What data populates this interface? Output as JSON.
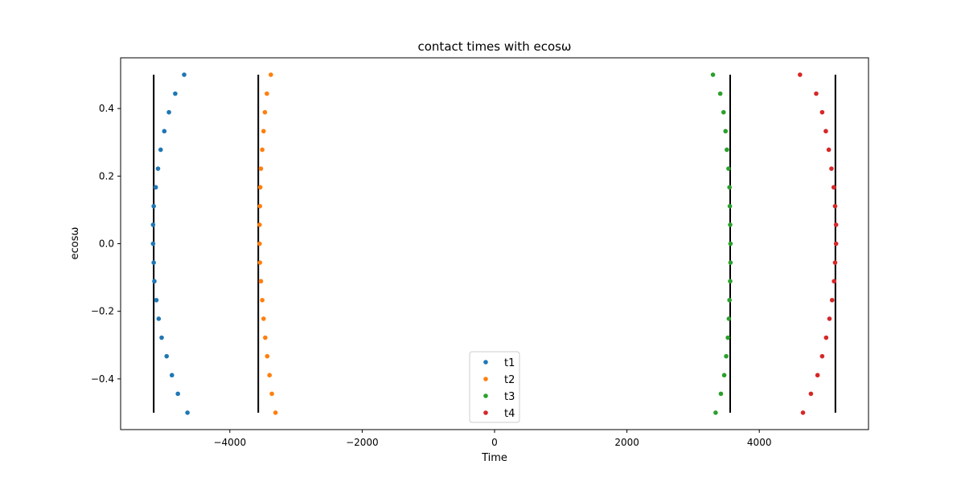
{
  "chart_data": {
    "type": "scatter",
    "title": "contact times with ecosω",
    "xlabel": "Time",
    "ylabel": "ecosω",
    "xlim": [
      -5650,
      5650
    ],
    "ylim": [
      -0.55,
      0.55
    ],
    "x_ticks": [
      -4000,
      -2000,
      0,
      2000,
      4000
    ],
    "x_tick_labels": [
      "−4000",
      "−2000",
      "0",
      "2000",
      "4000"
    ],
    "y_ticks": [
      -0.4,
      -0.2,
      0.0,
      0.2,
      0.4
    ],
    "y_tick_labels": [
      "−0.4",
      "−0.2",
      "0.0",
      "0.2",
      "0.4"
    ],
    "grid": false,
    "legend_position": "bottom-center",
    "y": [
      -0.5,
      -0.444,
      -0.389,
      -0.333,
      -0.278,
      -0.222,
      -0.167,
      -0.111,
      -0.056,
      0.0,
      0.056,
      0.111,
      0.167,
      0.222,
      0.278,
      0.333,
      0.389,
      0.444,
      0.5
    ],
    "series": [
      {
        "name": "t1",
        "color": "#1f77b4",
        "x": [
          -4640,
          -4785,
          -4875,
          -4955,
          -5030,
          -5075,
          -5110,
          -5140,
          -5150,
          -5160,
          -5160,
          -5150,
          -5120,
          -5085,
          -5045,
          -4990,
          -4920,
          -4825,
          -4690
        ]
      },
      {
        "name": "t2",
        "color": "#ff7f0e",
        "x": [
          -3310,
          -3365,
          -3400,
          -3435,
          -3465,
          -3490,
          -3510,
          -3530,
          -3545,
          -3550,
          -3550,
          -3545,
          -3540,
          -3530,
          -3510,
          -3490,
          -3470,
          -3440,
          -3380
        ]
      },
      {
        "name": "t3",
        "color": "#2ca02c",
        "x": [
          3340,
          3420,
          3470,
          3500,
          3525,
          3540,
          3550,
          3560,
          3565,
          3565,
          3560,
          3555,
          3550,
          3535,
          3510,
          3490,
          3460,
          3410,
          3300
        ]
      },
      {
        "name": "t4",
        "color": "#d62728",
        "x": [
          4660,
          4780,
          4880,
          4950,
          5010,
          5060,
          5100,
          5130,
          5145,
          5160,
          5160,
          5145,
          5125,
          5090,
          5050,
          5005,
          4950,
          4860,
          4615
        ]
      }
    ],
    "vlines": [
      {
        "x": -5150,
        "y0": -0.5,
        "y1": 0.5,
        "color": "#000000"
      },
      {
        "x": -3570,
        "y0": -0.5,
        "y1": 0.5,
        "color": "#000000"
      },
      {
        "x": 3560,
        "y0": -0.5,
        "y1": 0.5,
        "color": "#000000"
      },
      {
        "x": 5150,
        "y0": -0.5,
        "y1": 0.5,
        "color": "#000000"
      }
    ]
  }
}
